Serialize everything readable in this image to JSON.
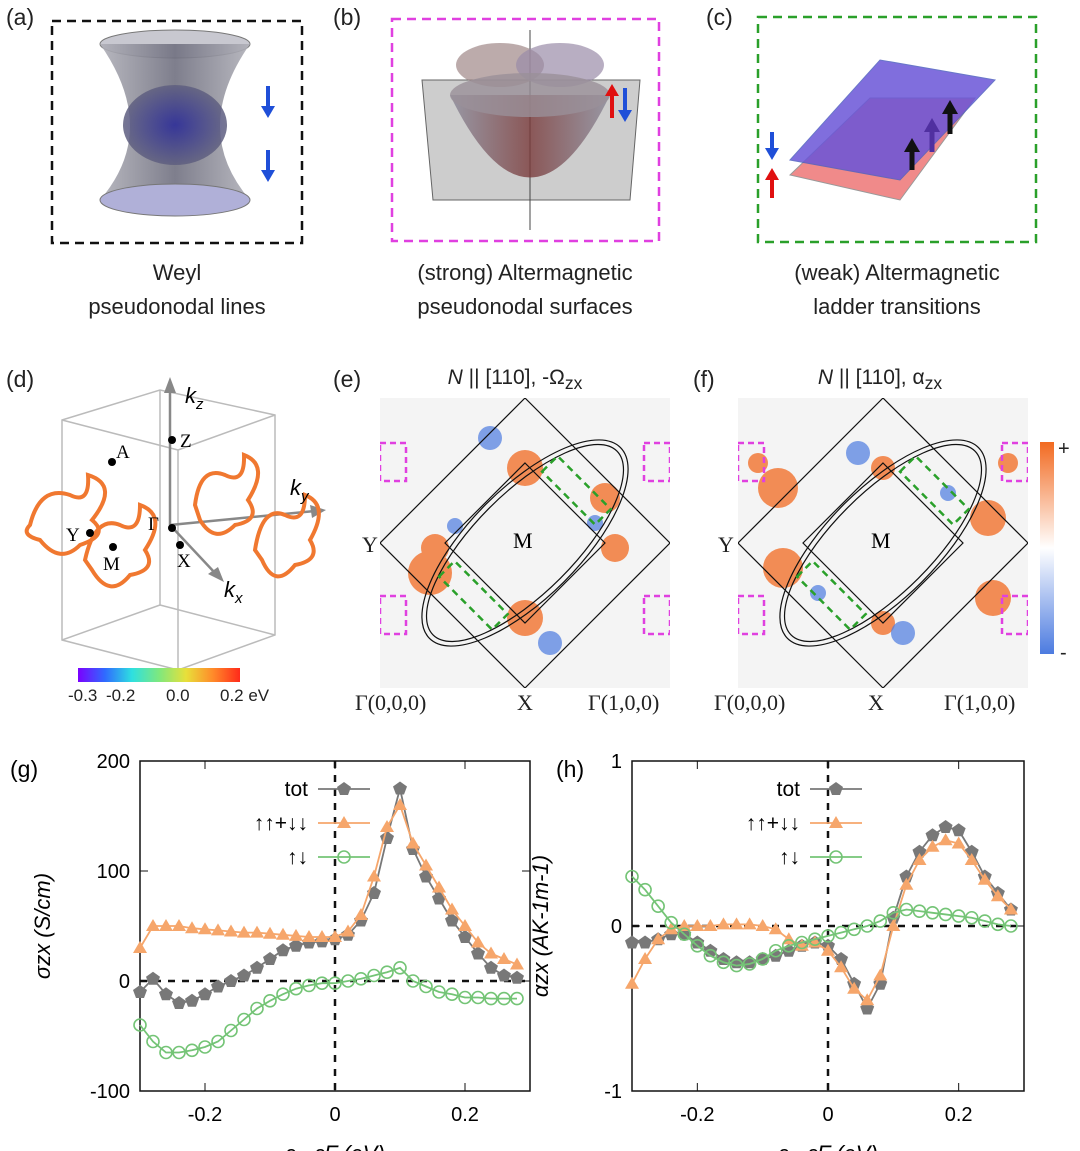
{
  "panels": {
    "a": {
      "label": "(a)",
      "caption_l1": "Weyl",
      "caption_l2": "pseudonodal lines"
    },
    "b": {
      "label": "(b)",
      "caption_l1": "(strong) Altermagnetic",
      "caption_l2": "pseudonodal surfaces"
    },
    "c": {
      "label": "(c)",
      "caption_l1": "(weak) Altermagnetic",
      "caption_l2": "ladder transitions"
    },
    "d": {
      "label": "(d)",
      "kz": "k",
      "kz_sub": "z",
      "ky": "k",
      "ky_sub": "y",
      "kx": "k",
      "kx_sub": "x",
      "points": {
        "A": "A",
        "Z": "Z",
        "Gamma": "Γ",
        "Y": "Y",
        "M": "M",
        "X": "X"
      },
      "colorbar_ticks": [
        "-0.3",
        "-0.2",
        "0.0",
        "0.2 eV"
      ]
    },
    "e": {
      "label": "(e)",
      "title_N": "N",
      "title_rest": " || [110], -Ω",
      "title_sub": "zx",
      "M": "M",
      "Y": "Y",
      "x_labels": [
        "Γ(0,0,0)",
        "X",
        "Γ(1,0,0)"
      ]
    },
    "f": {
      "label": "(f)",
      "title_N": "N",
      "title_rest": " || [110], α",
      "title_sub": "zx",
      "M": "M",
      "Y": "Y",
      "x_labels": [
        "Γ(0,0,0)",
        "X",
        "Γ(1,0,0)"
      ],
      "cbar_plus": "+",
      "cbar_minus": "-"
    }
  },
  "colors": {
    "tot": "#787878",
    "same": "#f6a66b",
    "opp": "#74c476",
    "orange": "#f26a21",
    "blue": "#4c7be0"
  },
  "chart_data": [
    {
      "panel": "(g)",
      "type": "line",
      "ylabel": "σzx (S/cm)",
      "xlabel": "ε - εF (eV)",
      "xlim": [
        -0.3,
        0.3
      ],
      "ylim": [
        -100,
        200
      ],
      "xticks": [
        "-0.2",
        "0",
        "0.2"
      ],
      "yticks": [
        "-100",
        "0",
        "100",
        "200"
      ],
      "legend": [
        "tot",
        "↑↑+↓↓",
        "↑↓"
      ],
      "x": [
        -0.3,
        -0.28,
        -0.26,
        -0.24,
        -0.22,
        -0.2,
        -0.18,
        -0.16,
        -0.14,
        -0.12,
        -0.1,
        -0.08,
        -0.06,
        -0.04,
        -0.02,
        0,
        0.02,
        0.04,
        0.06,
        0.08,
        0.1,
        0.12,
        0.14,
        0.16,
        0.18,
        0.2,
        0.22,
        0.24,
        0.26,
        0.28
      ],
      "series": [
        {
          "name": "tot",
          "values": [
            -10,
            2,
            -12,
            -20,
            -18,
            -12,
            -5,
            0,
            5,
            12,
            20,
            28,
            32,
            35,
            36,
            38,
            42,
            55,
            80,
            130,
            175,
            120,
            95,
            75,
            55,
            40,
            25,
            12,
            5,
            3
          ]
        },
        {
          "name": "↑↑+↓↓",
          "values": [
            30,
            50,
            50,
            50,
            48,
            47,
            46,
            45,
            44,
            44,
            43,
            42,
            41,
            40,
            40,
            40,
            45,
            60,
            95,
            140,
            160,
            125,
            105,
            85,
            65,
            50,
            35,
            25,
            20,
            15
          ]
        },
        {
          "name": "↑↓",
          "values": [
            -40,
            -55,
            -65,
            -65,
            -63,
            -60,
            -55,
            -45,
            -35,
            -25,
            -18,
            -12,
            -7,
            -4,
            -2,
            -2,
            0,
            2,
            5,
            8,
            12,
            0,
            -5,
            -10,
            -12,
            -15,
            -15,
            -16,
            -16,
            -16
          ]
        }
      ]
    },
    {
      "panel": "(h)",
      "type": "line",
      "ylabel": "αzx (AK-1m-1)",
      "xlabel": "ε - εF (eV)",
      "xlim": [
        -0.3,
        0.3
      ],
      "ylim": [
        -1,
        1
      ],
      "xticks": [
        "-0.2",
        "0",
        "0.2"
      ],
      "yticks": [
        "-1",
        "0",
        "1"
      ],
      "legend": [
        "tot",
        "↑↑+↓↓",
        "↑↓"
      ],
      "x": [
        -0.3,
        -0.28,
        -0.26,
        -0.24,
        -0.22,
        -0.2,
        -0.18,
        -0.16,
        -0.14,
        -0.12,
        -0.1,
        -0.08,
        -0.06,
        -0.04,
        -0.02,
        0,
        0.02,
        0.04,
        0.06,
        0.08,
        0.1,
        0.12,
        0.14,
        0.16,
        0.18,
        0.2,
        0.22,
        0.24,
        0.26,
        0.28
      ],
      "series": [
        {
          "name": "tot",
          "values": [
            -0.1,
            -0.1,
            -0.08,
            -0.05,
            -0.05,
            -0.1,
            -0.15,
            -0.2,
            -0.22,
            -0.22,
            -0.2,
            -0.18,
            -0.15,
            -0.12,
            -0.1,
            -0.12,
            -0.2,
            -0.35,
            -0.5,
            -0.35,
            0.05,
            0.3,
            0.45,
            0.55,
            0.6,
            0.58,
            0.45,
            0.3,
            0.2,
            0.1
          ]
        },
        {
          "name": "↑↑+↓↓",
          "values": [
            -0.35,
            -0.2,
            -0.08,
            -0.02,
            0,
            0,
            0,
            0.01,
            0.01,
            0.01,
            0,
            -0.02,
            -0.08,
            -0.12,
            -0.1,
            -0.15,
            -0.25,
            -0.38,
            -0.45,
            -0.3,
            0.0,
            0.25,
            0.4,
            0.48,
            0.52,
            0.5,
            0.4,
            0.28,
            0.18,
            0.1
          ]
        },
        {
          "name": "↑↓",
          "values": [
            0.3,
            0.22,
            0.12,
            0.02,
            -0.05,
            -0.12,
            -0.18,
            -0.22,
            -0.24,
            -0.23,
            -0.2,
            -0.15,
            -0.12,
            -0.1,
            -0.08,
            -0.06,
            -0.04,
            -0.02,
            0,
            0.03,
            0.08,
            0.1,
            0.09,
            0.08,
            0.07,
            0.06,
            0.05,
            0.03,
            0.01,
            0
          ]
        }
      ]
    }
  ]
}
